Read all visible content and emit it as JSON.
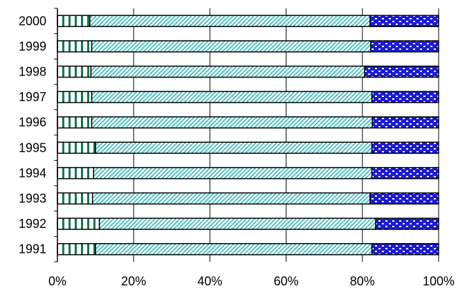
{
  "chart_data": {
    "type": "bar",
    "orientation": "horizontal",
    "stacked": true,
    "normalized": true,
    "categories": [
      "2000",
      "1999",
      "1998",
      "1997",
      "1996",
      "1995",
      "1994",
      "1993",
      "1992",
      "1991"
    ],
    "series": [
      {
        "values": [
          8.5,
          9.0,
          8.8,
          9.0,
          9.0,
          10.0,
          9.5,
          9.2,
          11.0,
          10.0
        ],
        "fill": "green-vertical-stripes",
        "color": "#0a7a4a"
      },
      {
        "values": [
          73.5,
          73.2,
          71.8,
          73.5,
          73.6,
          72.5,
          73.0,
          72.8,
          72.5,
          72.5
        ],
        "fill": "teal-diagonal-hatch",
        "color": "#2fb8b8"
      },
      {
        "values": [
          18.0,
          17.8,
          19.4,
          17.5,
          17.4,
          17.5,
          17.5,
          18.0,
          16.5,
          17.5
        ],
        "fill": "blue-dotted",
        "color": "#1b1bd6"
      }
    ],
    "xlim": [
      0,
      100
    ],
    "x_ticks": [
      "0%",
      "20%",
      "40%",
      "60%",
      "80%",
      "100%"
    ],
    "grid": "vertical",
    "legend": "none"
  }
}
